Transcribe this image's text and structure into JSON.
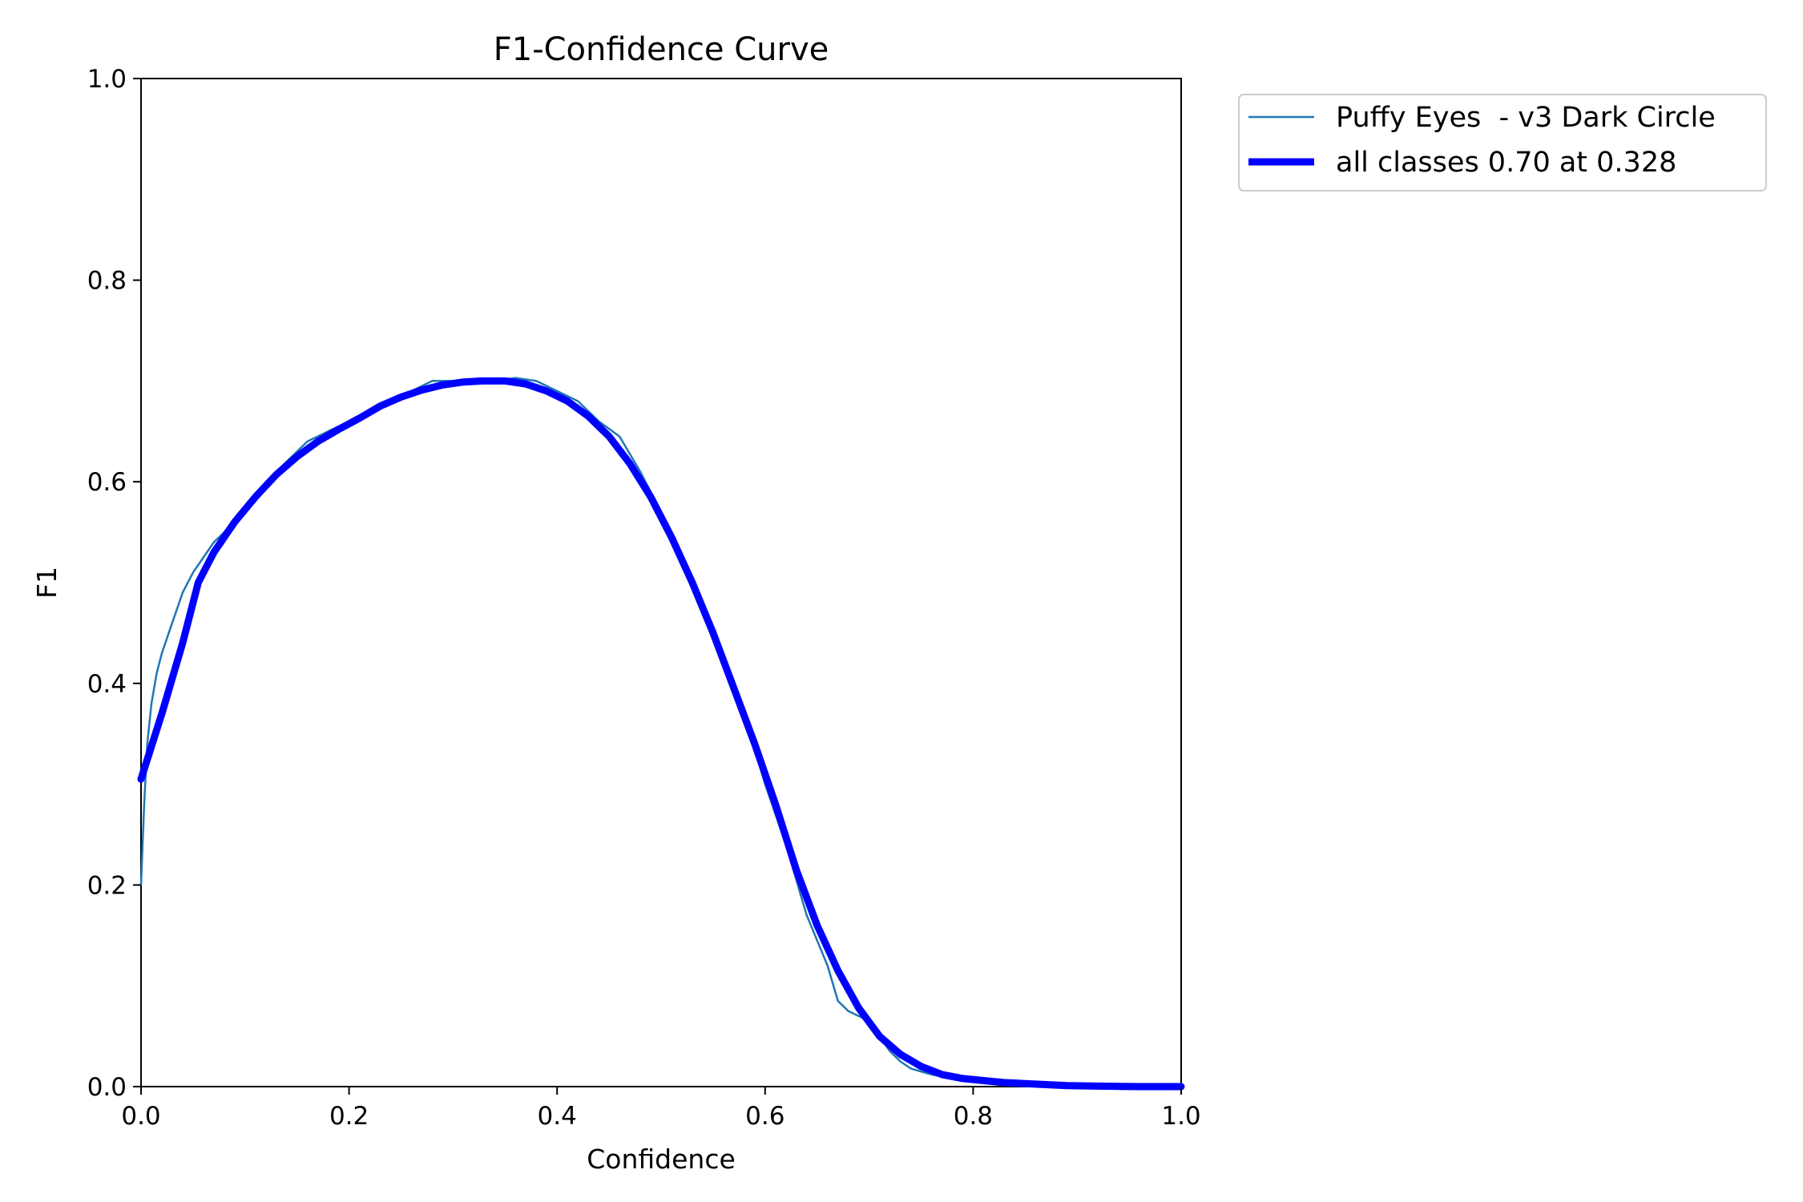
{
  "chart_data": {
    "type": "line",
    "title": "F1-Confidence Curve",
    "xlabel": "Confidence",
    "ylabel": "F1",
    "xlim": [
      0.0,
      1.0
    ],
    "ylim": [
      0.0,
      1.0
    ],
    "xticks": [
      "0.0",
      "0.2",
      "0.4",
      "0.6",
      "0.8",
      "1.0"
    ],
    "yticks": [
      "0.0",
      "0.2",
      "0.4",
      "0.6",
      "0.8",
      "1.0"
    ],
    "grid": false,
    "legend_placement": "outside-top-right",
    "series": [
      {
        "name": "Puffy Eyes  - v3 Dark Circle",
        "color": "#1f77b4",
        "style": "thin",
        "x": [
          0.0,
          0.003,
          0.006,
          0.01,
          0.015,
          0.02,
          0.03,
          0.04,
          0.05,
          0.06,
          0.07,
          0.08,
          0.1,
          0.12,
          0.14,
          0.16,
          0.18,
          0.2,
          0.22,
          0.24,
          0.26,
          0.28,
          0.3,
          0.32,
          0.34,
          0.36,
          0.38,
          0.4,
          0.42,
          0.44,
          0.46,
          0.48,
          0.5,
          0.52,
          0.54,
          0.56,
          0.58,
          0.6,
          0.62,
          0.64,
          0.66,
          0.67,
          0.68,
          0.7,
          0.72,
          0.73,
          0.74,
          0.76,
          0.78,
          0.8,
          0.82,
          0.84,
          0.86,
          0.88,
          0.9,
          0.95,
          1.0
        ],
        "y": [
          0.2,
          0.28,
          0.34,
          0.38,
          0.41,
          0.43,
          0.46,
          0.49,
          0.51,
          0.525,
          0.54,
          0.55,
          0.575,
          0.6,
          0.62,
          0.64,
          0.65,
          0.66,
          0.67,
          0.68,
          0.69,
          0.7,
          0.7,
          0.7,
          0.7,
          0.703,
          0.7,
          0.69,
          0.68,
          0.66,
          0.645,
          0.61,
          0.57,
          0.52,
          0.47,
          0.42,
          0.37,
          0.3,
          0.24,
          0.17,
          0.12,
          0.085,
          0.075,
          0.065,
          0.035,
          0.025,
          0.018,
          0.012,
          0.008,
          0.005,
          0.003,
          0.002,
          0.001,
          0.0,
          0.0,
          0.0,
          0.0
        ]
      },
      {
        "name": "all classes 0.70 at 0.328",
        "color": "#0000ff",
        "style": "thick",
        "x": [
          0.0,
          0.02,
          0.04,
          0.055,
          0.07,
          0.09,
          0.11,
          0.13,
          0.15,
          0.17,
          0.19,
          0.21,
          0.23,
          0.25,
          0.27,
          0.29,
          0.31,
          0.328,
          0.35,
          0.37,
          0.39,
          0.41,
          0.43,
          0.45,
          0.47,
          0.49,
          0.51,
          0.53,
          0.55,
          0.57,
          0.59,
          0.61,
          0.63,
          0.65,
          0.67,
          0.69,
          0.71,
          0.73,
          0.75,
          0.77,
          0.79,
          0.81,
          0.83,
          0.85,
          0.87,
          0.89,
          0.92,
          0.96,
          1.0
        ],
        "y": [
          0.305,
          0.37,
          0.44,
          0.5,
          0.53,
          0.56,
          0.585,
          0.607,
          0.625,
          0.64,
          0.652,
          0.663,
          0.675,
          0.684,
          0.691,
          0.696,
          0.699,
          0.7,
          0.7,
          0.697,
          0.69,
          0.68,
          0.665,
          0.645,
          0.618,
          0.585,
          0.545,
          0.5,
          0.45,
          0.395,
          0.34,
          0.28,
          0.215,
          0.16,
          0.115,
          0.078,
          0.05,
          0.032,
          0.02,
          0.012,
          0.008,
          0.006,
          0.004,
          0.003,
          0.002,
          0.001,
          0.0005,
          0.0,
          0.0
        ]
      }
    ]
  }
}
